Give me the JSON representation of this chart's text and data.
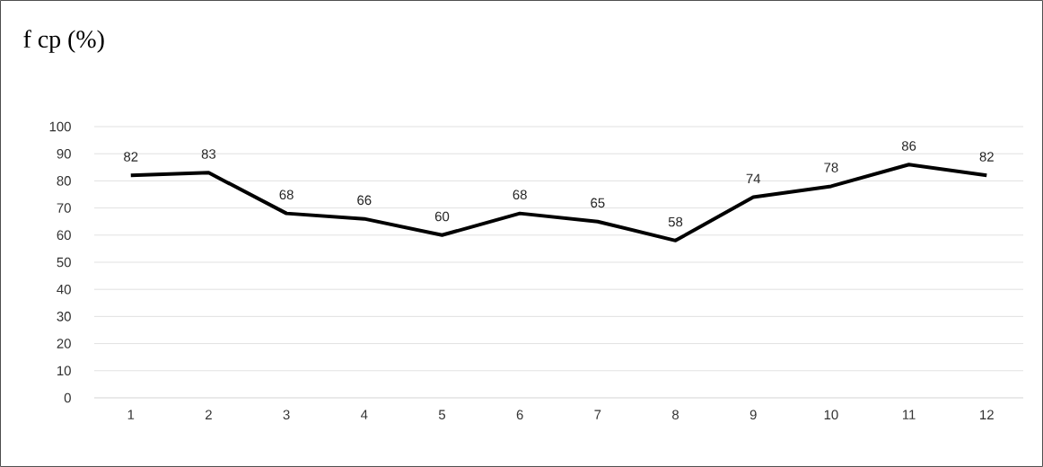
{
  "chart_data": {
    "type": "line",
    "title": "f cp (%)",
    "categories": [
      "1",
      "2",
      "3",
      "4",
      "5",
      "6",
      "7",
      "8",
      "9",
      "10",
      "11",
      "12"
    ],
    "values": [
      82,
      83,
      68,
      66,
      60,
      68,
      65,
      58,
      74,
      78,
      86,
      82
    ],
    "color": "#000000",
    "ylim": [
      0,
      100
    ],
    "yticks": [
      0,
      10,
      20,
      30,
      40,
      50,
      60,
      70,
      80,
      90,
      100
    ],
    "grid": "y",
    "data_labels": true,
    "marker": "none",
    "line_style": "solid"
  }
}
